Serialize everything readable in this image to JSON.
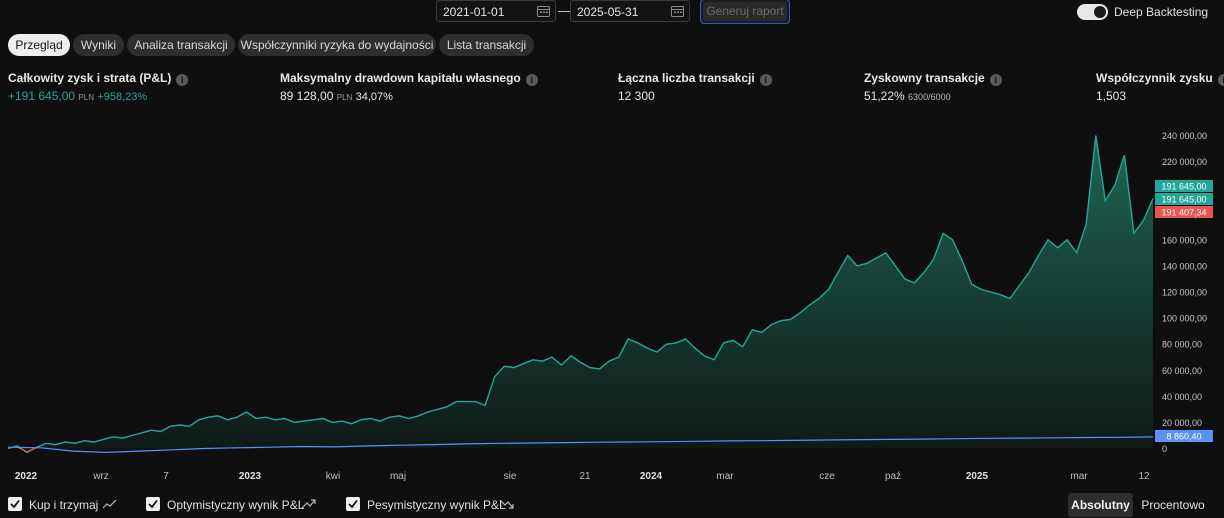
{
  "toolbar": {
    "date_from": "2021-01-01",
    "date_to": "2025-05-31",
    "separator": "—",
    "generate_label": "Generuj raport",
    "deep_backtesting_label": "Deep Backtesting",
    "deep_backtesting_on": true
  },
  "tabs": [
    {
      "label": "Przegląd",
      "active": true
    },
    {
      "label": "Wyniki"
    },
    {
      "label": "Analiza transakcji"
    },
    {
      "label": "Współczynniki ryzyka do wydajności"
    },
    {
      "label": "Lista transakcji"
    }
  ],
  "stats": {
    "pnl": {
      "title": "Całkowity zysk i strata (P&L)",
      "value": "+191 645,00",
      "unit": "PLN",
      "pct": "+958,23%"
    },
    "drawdown": {
      "title": "Maksymalny drawdown kapitału własnego",
      "value": "89 128,00",
      "unit": "PLN",
      "pct": "34,07%"
    },
    "trades": {
      "title": "Łączna liczba transakcji",
      "value": "12 300"
    },
    "profitable": {
      "title": "Zyskowny transakcje",
      "pct": "51,22%",
      "ratio": "6300/6000"
    },
    "profit_factor": {
      "title": "Współczynnik zysku",
      "value": "1,503"
    }
  },
  "chart_data": {
    "type": "area",
    "y_axis_ticks": [
      "240 000,00",
      "220 000,00",
      "200 000,00",
      "180 000,00",
      "160 000,00",
      "140 000,00",
      "120 000,00",
      "100 000,00",
      "80 000,00",
      "60 000,00",
      "40 000,00",
      "20 000,00",
      "0"
    ],
    "ylim": [
      0,
      240000
    ],
    "x_tick_labels": [
      {
        "label": "2022",
        "bold": true
      },
      {
        "label": "wrz"
      },
      {
        "label": "7"
      },
      {
        "label": "2023",
        "bold": true
      },
      {
        "label": "kwi"
      },
      {
        "label": "maj"
      },
      {
        "label": "sie"
      },
      {
        "label": "21"
      },
      {
        "label": "2024",
        "bold": true
      },
      {
        "label": "mar"
      },
      {
        "label": "cze"
      },
      {
        "label": "paź"
      },
      {
        "label": "2025",
        "bold": true
      },
      {
        "label": "mar"
      },
      {
        "label": "12"
      }
    ],
    "series": [
      {
        "color": "#26a69a",
        "values": [
          0,
          2000,
          -3000,
          1000,
          4000,
          3000,
          5000,
          4000,
          6000,
          5000,
          7000,
          9000,
          8000,
          10000,
          12000,
          14000,
          13000,
          17000,
          18000,
          17000,
          22000,
          24000,
          25000,
          22000,
          24000,
          28000,
          23000,
          24000,
          22000,
          23000,
          20000,
          21000,
          22000,
          23000,
          20000,
          21000,
          19000,
          22000,
          23000,
          21000,
          24000,
          25000,
          23000,
          25000,
          28000,
          30000,
          32000,
          36000,
          36000,
          36000,
          33000,
          55000,
          63000,
          62000,
          65000,
          68000,
          67000,
          70000,
          64000,
          71000,
          66000,
          62000,
          61000,
          67000,
          70000,
          84000,
          81000,
          77000,
          74000,
          80000,
          81000,
          84000,
          77000,
          71000,
          68000,
          81000,
          83000,
          78000,
          91000,
          89000,
          95000,
          98000,
          99000,
          104000,
          110000,
          115000,
          122000,
          135000,
          148000,
          140000,
          142000,
          146000,
          150000,
          140000,
          130000,
          127000,
          135000,
          145000,
          165000,
          160000,
          144000,
          126000,
          122000,
          120000,
          118000,
          115000,
          125000,
          135000,
          148000,
          160000,
          154000,
          160000,
          150000,
          172000,
          240000,
          190000,
          202000,
          225000,
          165000,
          175000,
          191645
        ],
        "end_label": "191 645,00"
      },
      {
        "color": "#ef5350",
        "end_label": "191 407,34",
        "note": "pessimistic P&L, nearly identical to optimistic"
      },
      {
        "color": "#5b8ff9",
        "values": [
          1000,
          500,
          -2000,
          -3000,
          -2000,
          -1000,
          0,
          500,
          1000,
          1500,
          1200,
          2000,
          2500,
          3000,
          3500,
          4000,
          4200,
          4500,
          4800,
          5000,
          5200,
          5500,
          5800,
          6000,
          6200,
          6500,
          6800,
          7000,
          7200,
          7500,
          7800,
          8000,
          8200,
          8400,
          8600,
          8860
        ],
        "end_label": "8 860,40"
      }
    ],
    "end_labels": [
      {
        "text": "191 645,00",
        "color": "#26a69a"
      },
      {
        "text": "191 645,00",
        "color": "#26a69a"
      },
      {
        "text": "191 407,34",
        "color": "#ef5350"
      },
      {
        "text": "8 860,40",
        "color": "#5b8ff9"
      }
    ]
  },
  "legend": [
    {
      "label": "Kup i trzymaj",
      "checked": true
    },
    {
      "label": "Optymistyczny wynik P&L",
      "checked": true
    },
    {
      "label": "Pesymistyczny wynik P&L",
      "checked": true
    }
  ],
  "modes": {
    "absolute": "Absolutny",
    "percent": "Procentowo",
    "active": "absolute"
  }
}
